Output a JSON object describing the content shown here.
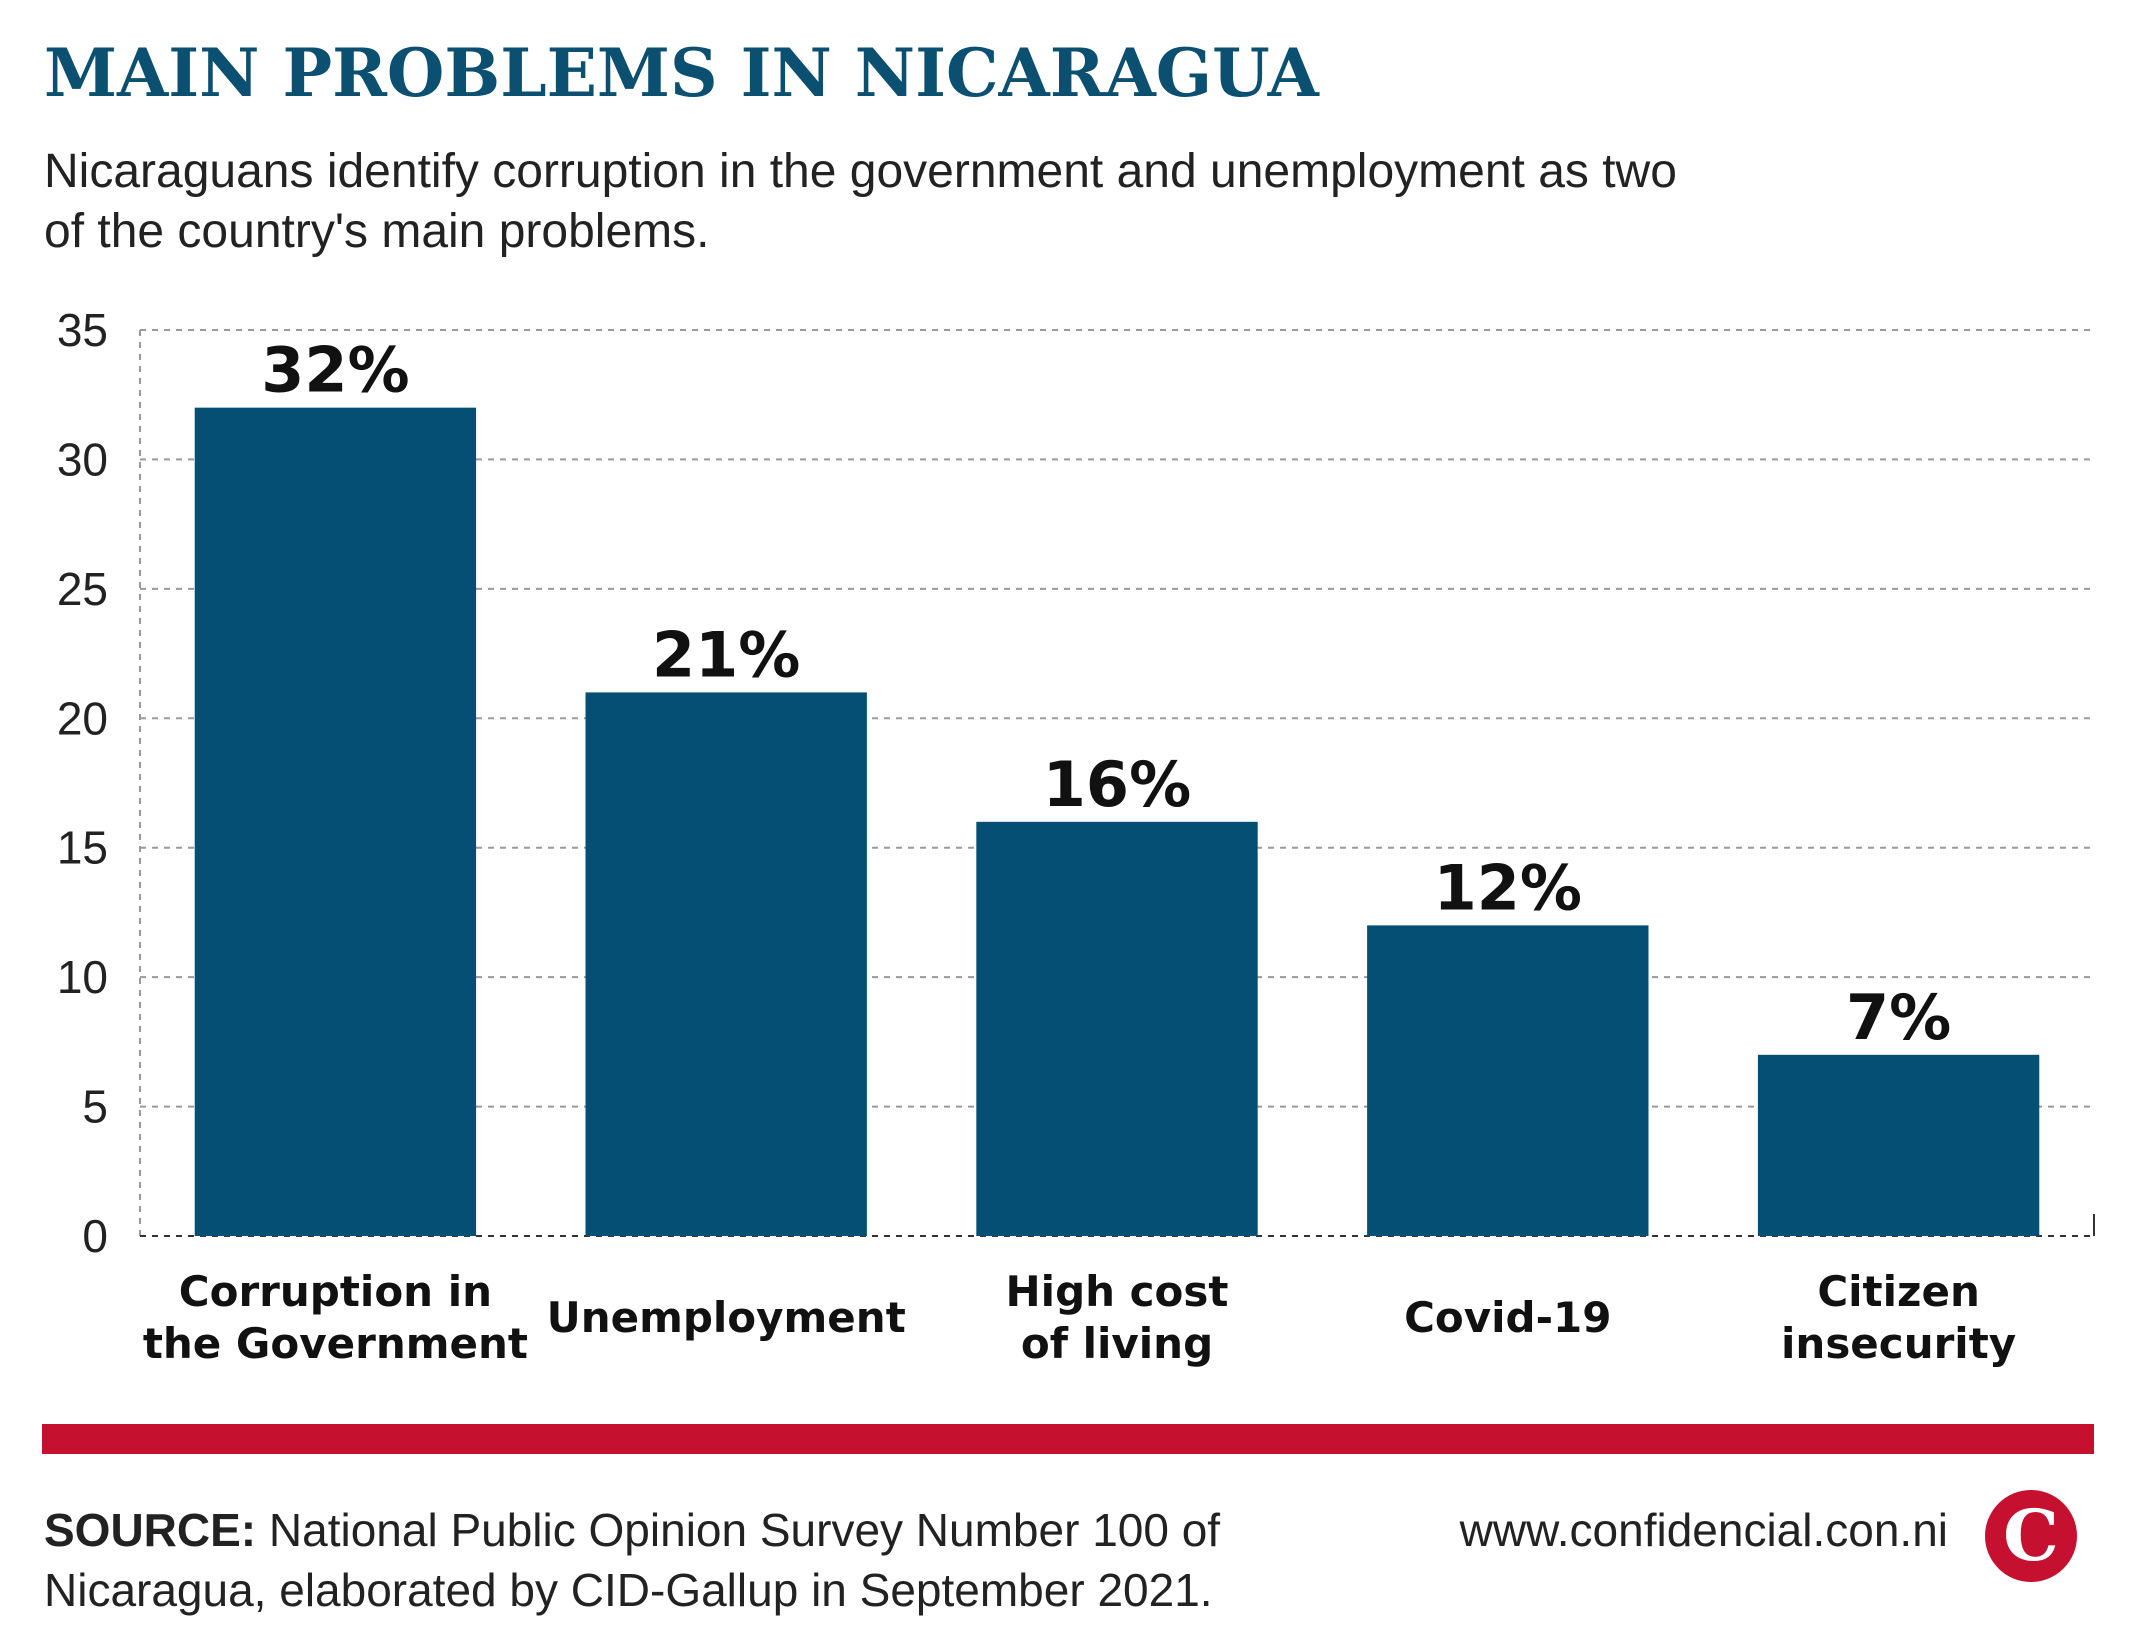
{
  "title": "MAIN PROBLEMS IN NICARAGUA",
  "subtitle": "Nicaraguans identify corruption in the government and unemployment as two of the country's main problems.",
  "source_label": "SOURCE:",
  "source_text": "National Public Opinion Survey Number 100 of Nicaragua, elaborated by CID-Gallup in September 2021.",
  "website": "www.confidencial.con.ni",
  "logo_letter": "C",
  "colors": {
    "title": "#0b4f71",
    "bar": "#044f73",
    "accent_red": "#c5102f",
    "grid": "#9a9a9a",
    "text": "#222222"
  },
  "chart_data": {
    "type": "bar",
    "categories": [
      [
        "Corruption in",
        "the Government"
      ],
      [
        "Unemployment"
      ],
      [
        "High cost",
        "of living"
      ],
      [
        "Covid-19"
      ],
      [
        "Citizen",
        "insecurity"
      ]
    ],
    "values": [
      32,
      21,
      16,
      12,
      7
    ],
    "data_labels": [
      "32%",
      "21%",
      "16%",
      "12%",
      "7%"
    ],
    "ylim": [
      0,
      35
    ],
    "yticks": [
      0,
      5,
      10,
      15,
      20,
      25,
      30,
      35
    ],
    "grid": "dashed horizontal",
    "legend": "none"
  }
}
